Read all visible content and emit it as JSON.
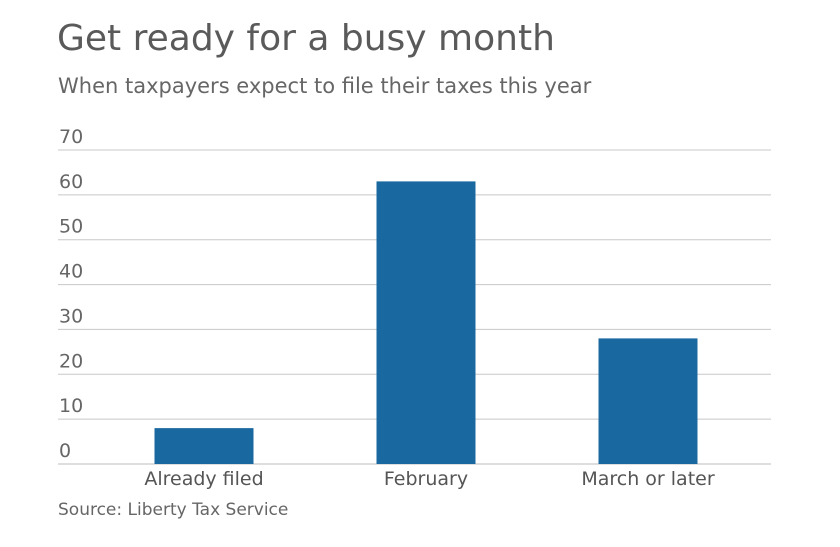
{
  "title": "Get ready for a busy month",
  "subtitle": "When taxpayers expect to file their taxes this year",
  "source": "Source: Liberty Tax Service",
  "colors": {
    "bar": "#1a68a0",
    "grid": "#c8c8c8",
    "baseline": "#bdbdbd"
  },
  "chart_data": {
    "type": "bar",
    "categories": [
      "Already filed",
      "February",
      "March or later"
    ],
    "values": [
      8,
      63,
      28
    ],
    "title": "Get ready for a busy month",
    "subtitle": "When taxpayers expect to file their taxes this year",
    "ylim": [
      0,
      70
    ],
    "yticks": [
      0,
      10,
      20,
      30,
      40,
      50,
      60,
      70
    ],
    "grid": true,
    "legend": "none"
  }
}
